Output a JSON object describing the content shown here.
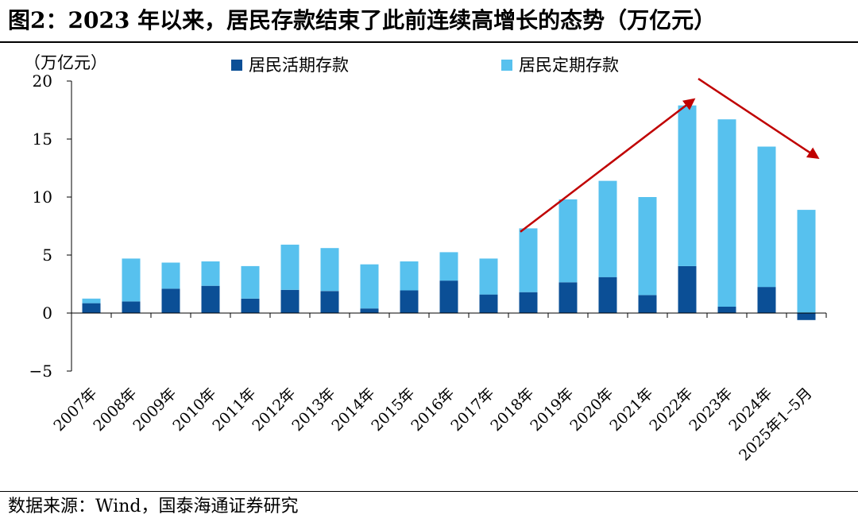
{
  "figure": {
    "title": "图2：2023 年以来，居民存款结束了此前连续高增长的态势（万亿元）",
    "source": "数据来源：Wind，国泰海通证券研究"
  },
  "chart_data": {
    "type": "bar",
    "stacked": true,
    "ylabel": "（万亿元）",
    "ylim": [
      -5,
      20
    ],
    "yticks": [
      -5,
      0,
      5,
      10,
      15,
      20
    ],
    "ytick_labels": [
      "−5",
      "0",
      "5",
      "10",
      "15",
      "20"
    ],
    "grid": false,
    "legend_position": "top",
    "categories": [
      "2007年",
      "2008年",
      "2009年",
      "2010年",
      "2011年",
      "2012年",
      "2013年",
      "2014年",
      "2015年",
      "2016年",
      "2017年",
      "2018年",
      "2019年",
      "2020年",
      "2021年",
      "2022年",
      "2023年",
      "2024年",
      "2025年1–5月"
    ],
    "series": [
      {
        "name": "居民活期存款",
        "color": "#0B4F96",
        "values": [
          0.85,
          1.0,
          2.1,
          2.35,
          1.25,
          2.0,
          1.9,
          0.4,
          1.95,
          2.8,
          1.6,
          1.8,
          2.65,
          3.1,
          1.55,
          4.05,
          0.55,
          2.25,
          -0.6
        ]
      },
      {
        "name": "居民定期存款",
        "color": "#57C1EE",
        "values": [
          0.4,
          3.7,
          2.25,
          2.1,
          2.8,
          3.9,
          3.7,
          3.8,
          2.5,
          2.45,
          3.1,
          5.5,
          7.15,
          8.3,
          8.45,
          13.85,
          16.15,
          12.1,
          8.9
        ]
      }
    ],
    "annotations": [
      {
        "type": "arrow",
        "color": "#C00000",
        "meaning": "rising trend",
        "from": [
          "2018年",
          7.0
        ],
        "to": [
          "2022年",
          18.4
        ]
      },
      {
        "type": "arrow",
        "color": "#C00000",
        "meaning": "declining trend",
        "from": [
          "2022年",
          20.2
        ],
        "to": [
          "2025年1–5月",
          13.4
        ]
      }
    ]
  }
}
